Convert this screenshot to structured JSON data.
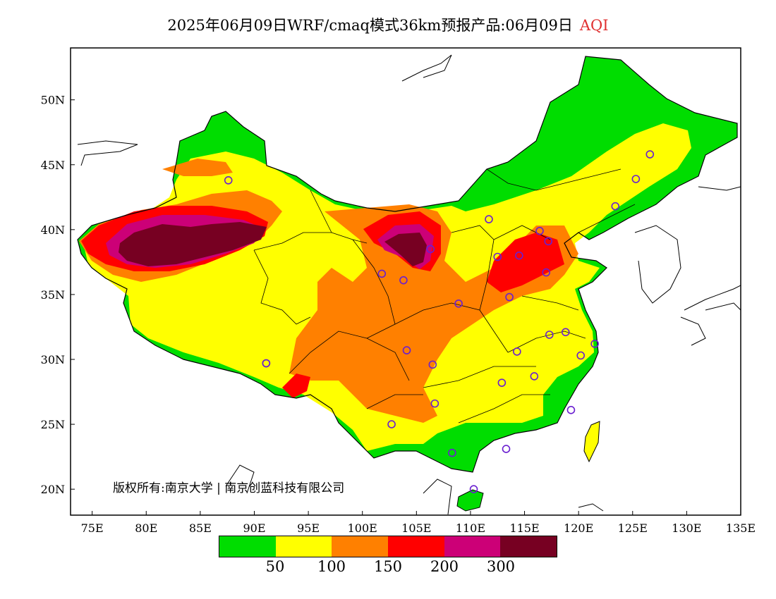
{
  "title": {
    "main": "2025年06月09日WRF/cmaq模式36km预报产品:06月09日",
    "variable": "AQI"
  },
  "axes": {
    "lat_labels": [
      "50N",
      "45N",
      "40N",
      "35N",
      "30N",
      "25N",
      "20N"
    ],
    "lon_labels": [
      "75E",
      "80E",
      "85E",
      "90E",
      "95E",
      "100E",
      "105E",
      "110E",
      "115E",
      "120E",
      "125E",
      "130E",
      "135E"
    ],
    "lon_range": [
      73,
      135
    ],
    "lat_range": [
      18,
      54
    ]
  },
  "legend": {
    "colors": [
      "#00dd00",
      "#ffff00",
      "#ff8000",
      "#ff0000",
      "#cc0077",
      "#770022"
    ],
    "labels": [
      "50",
      "100",
      "150",
      "200",
      "300"
    ]
  },
  "copyright": "版权所有:南京大学 | 南京创蓝科技有限公司",
  "markers": [
    {
      "lon": 87.6,
      "lat": 43.8
    },
    {
      "lon": 91.1,
      "lat": 29.7
    },
    {
      "lon": 101.8,
      "lat": 36.6
    },
    {
      "lon": 103.8,
      "lat": 36.1
    },
    {
      "lon": 106.3,
      "lat": 38.5
    },
    {
      "lon": 108.9,
      "lat": 34.3
    },
    {
      "lon": 111.7,
      "lat": 40.8
    },
    {
      "lon": 112.5,
      "lat": 37.9
    },
    {
      "lon": 114.5,
      "lat": 38.0
    },
    {
      "lon": 116.4,
      "lat": 39.9
    },
    {
      "lon": 117.2,
      "lat": 39.1
    },
    {
      "lon": 117.0,
      "lat": 36.7
    },
    {
      "lon": 113.6,
      "lat": 34.8
    },
    {
      "lon": 117.3,
      "lat": 31.9
    },
    {
      "lon": 118.8,
      "lat": 32.1
    },
    {
      "lon": 120.2,
      "lat": 30.3
    },
    {
      "lon": 121.5,
      "lat": 31.2
    },
    {
      "lon": 114.3,
      "lat": 30.6
    },
    {
      "lon": 115.9,
      "lat": 28.7
    },
    {
      "lon": 112.9,
      "lat": 28.2
    },
    {
      "lon": 106.5,
      "lat": 29.6
    },
    {
      "lon": 104.1,
      "lat": 30.7
    },
    {
      "lon": 106.7,
      "lat": 26.6
    },
    {
      "lon": 102.7,
      "lat": 25.0
    },
    {
      "lon": 108.3,
      "lat": 22.8
    },
    {
      "lon": 113.3,
      "lat": 23.1
    },
    {
      "lon": 119.3,
      "lat": 26.1
    },
    {
      "lon": 110.3,
      "lat": 20.0
    },
    {
      "lon": 123.4,
      "lat": 41.8
    },
    {
      "lon": 125.3,
      "lat": 43.9
    },
    {
      "lon": 126.6,
      "lat": 45.8
    },
    {
      "lon": 91.1,
      "lat": 29.7
    }
  ]
}
